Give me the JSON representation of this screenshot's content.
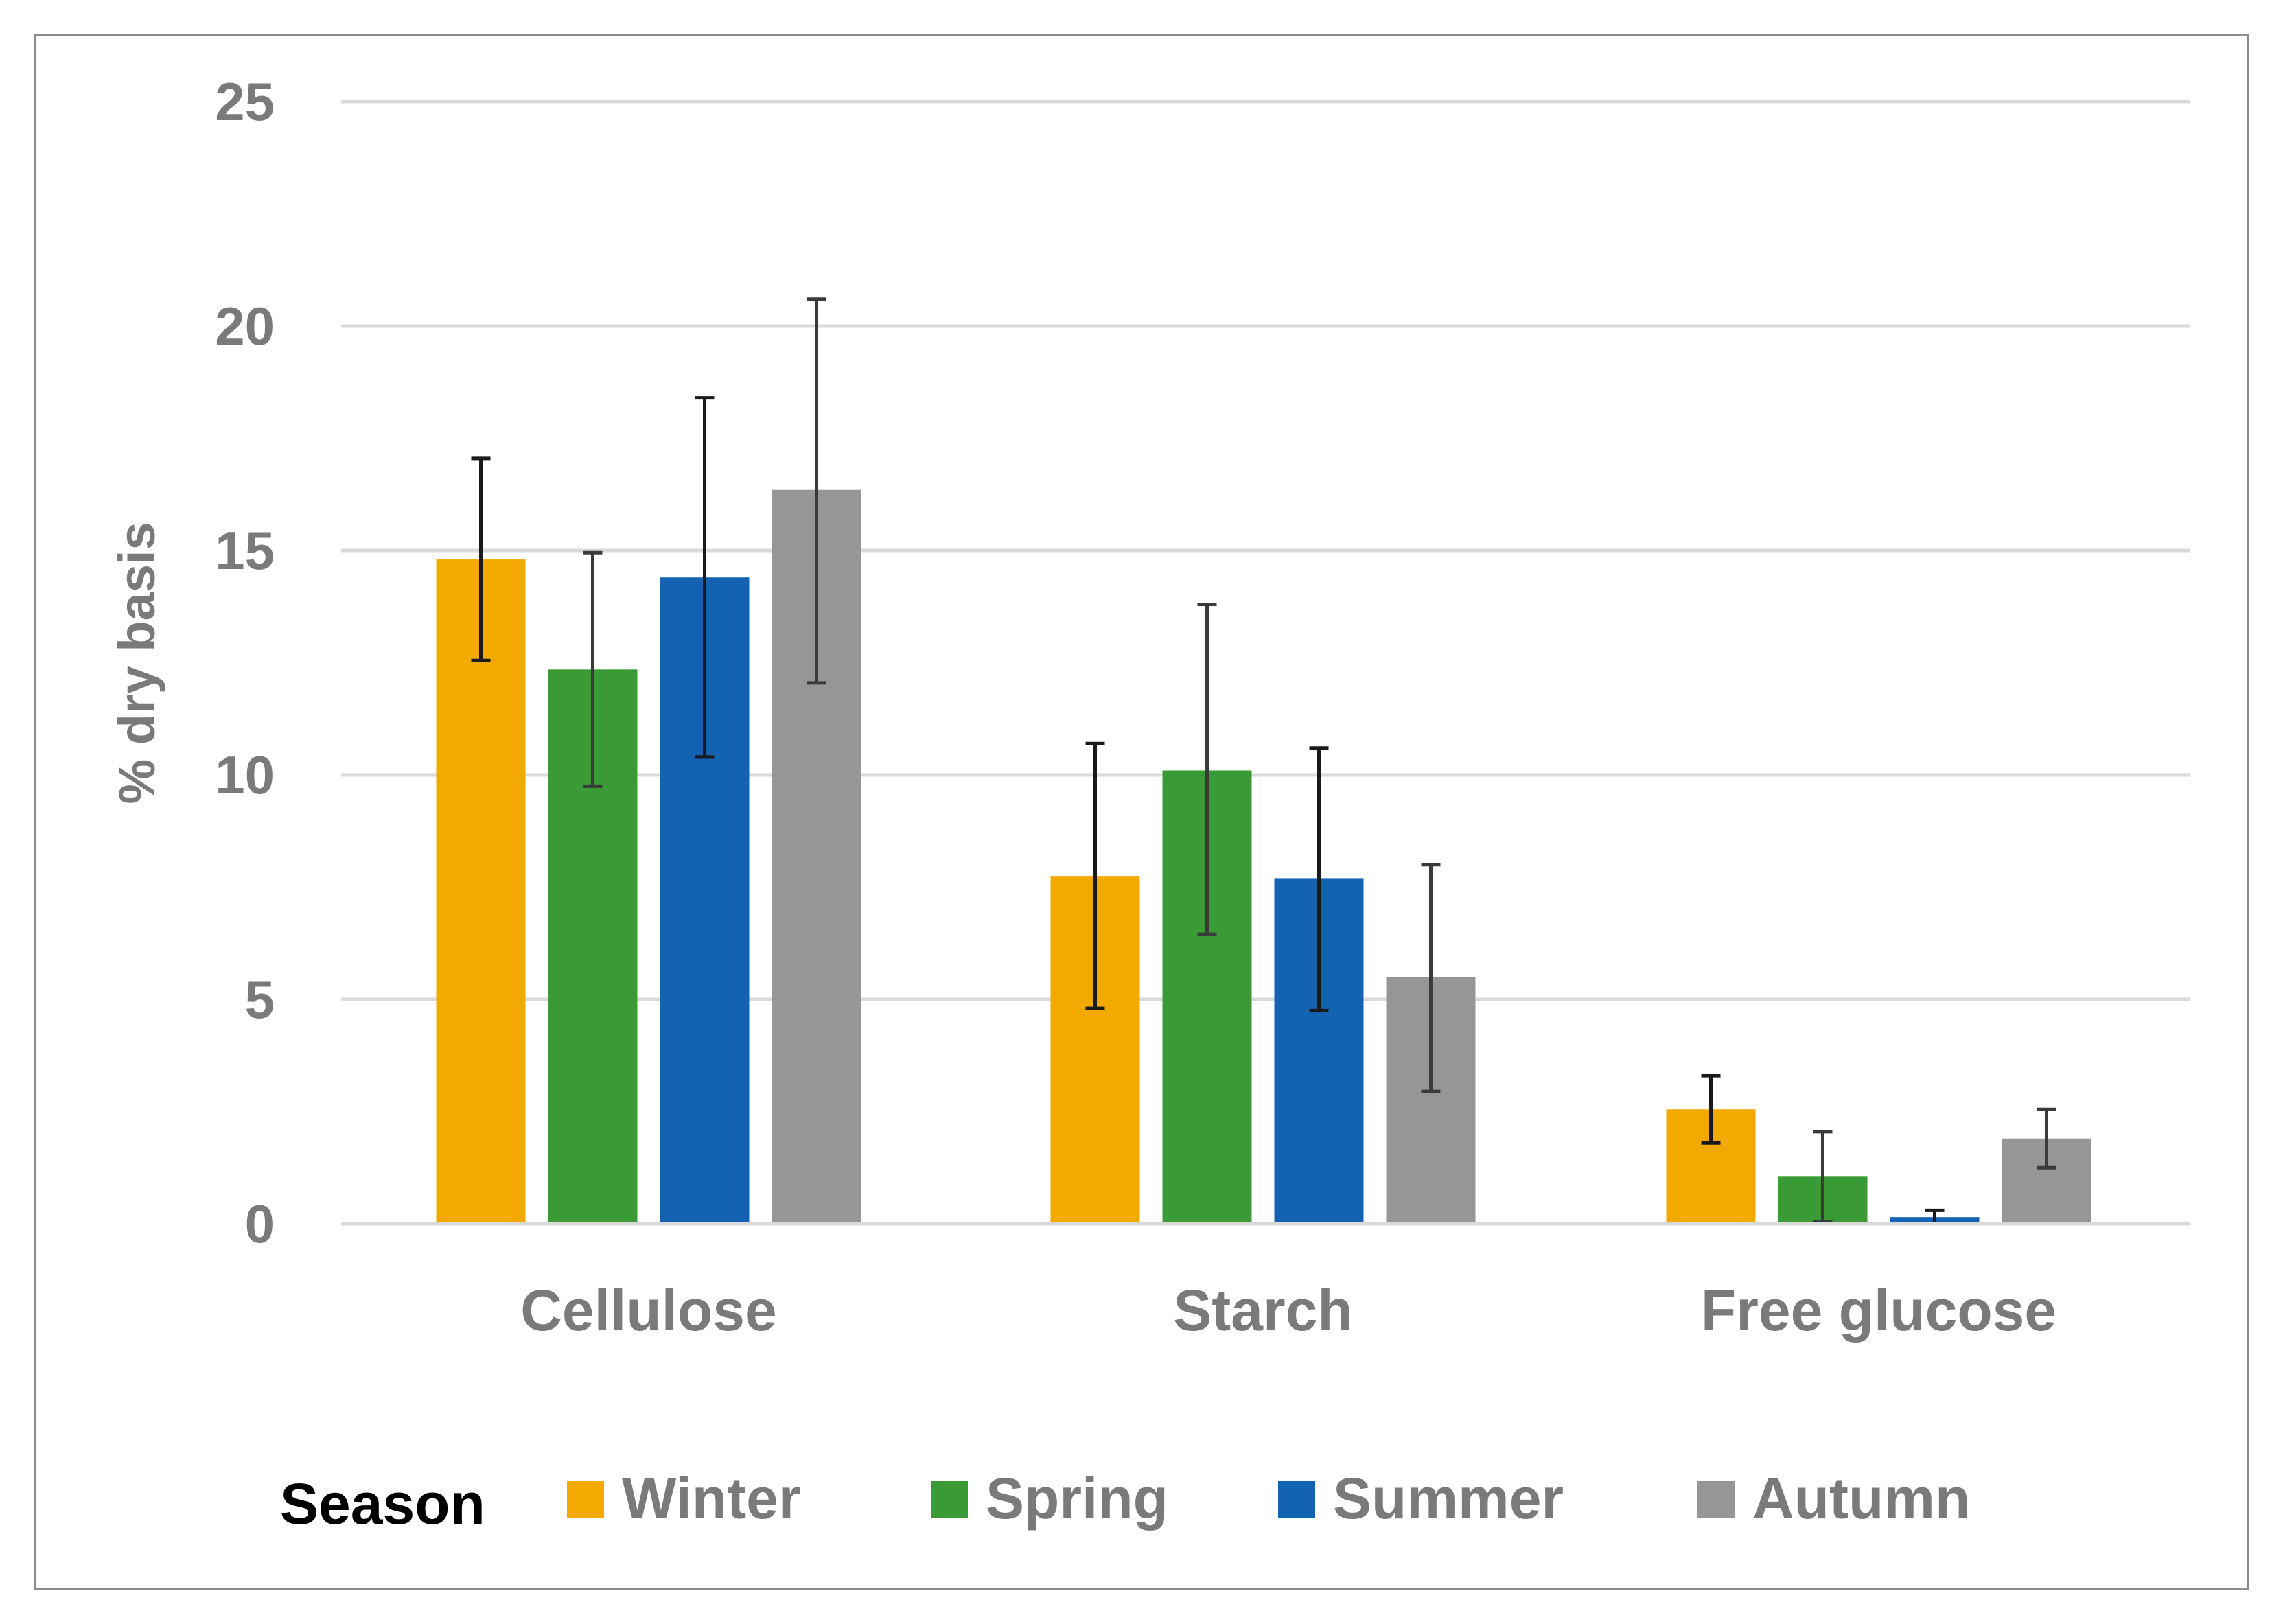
{
  "chart_data": {
    "type": "bar",
    "title": "",
    "xlabel": "",
    "ylabel": "% dry basis",
    "ylim": [
      0,
      25
    ],
    "yticks": [
      0,
      5,
      10,
      15,
      20,
      25
    ],
    "grid": true,
    "legend_title": "Season",
    "legend_position": "bottom",
    "categories": [
      "Cellulose",
      "Starch",
      "Free glucose"
    ],
    "series": [
      {
        "name": "Winter",
        "color": "#F2AA00",
        "values": [
          14.8,
          7.75,
          2.55
        ],
        "err_low": [
          12.55,
          4.8,
          1.8
        ],
        "err_high": [
          17.05,
          10.7,
          3.3
        ]
      },
      {
        "name": "Spring",
        "color": "#3A9A35",
        "values": [
          12.35,
          10.1,
          1.05
        ],
        "err_low": [
          9.75,
          6.45,
          0.05
        ],
        "err_high": [
          14.95,
          13.8,
          2.05
        ]
      },
      {
        "name": "Summer",
        "color": "#1462B2",
        "values": [
          14.4,
          7.7,
          0.15
        ],
        "err_low": [
          10.4,
          4.75,
          0.0
        ],
        "err_high": [
          18.4,
          10.6,
          0.3
        ]
      },
      {
        "name": "Autumn",
        "color": "#969696",
        "values": [
          16.35,
          5.5,
          1.9
        ],
        "err_low": [
          12.05,
          2.95,
          1.25
        ],
        "err_high": [
          20.6,
          8.0,
          2.55
        ]
      }
    ]
  }
}
